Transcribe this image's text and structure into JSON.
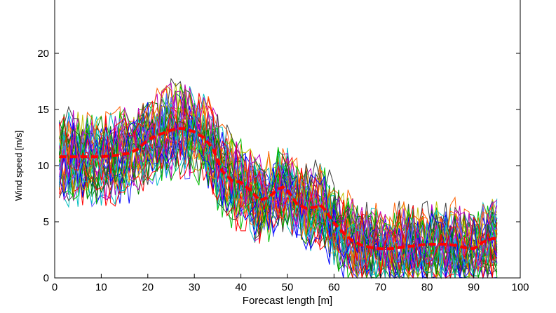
{
  "chart_data": {
    "type": "line",
    "title": "",
    "xlabel": "Forecast length [m]",
    "ylabel": "Wind speed [m/s]",
    "xlim": [
      0,
      100
    ],
    "ylim": [
      0,
      24
    ],
    "xticks": [
      0,
      10,
      20,
      30,
      40,
      50,
      60,
      70,
      80,
      90,
      100
    ],
    "yticks": [
      0,
      5,
      10,
      15,
      20
    ],
    "grid": false,
    "legend": "none",
    "ensemble": {
      "member_count": 45,
      "x_range": [
        1,
        95
      ],
      "description_colors": [
        "#0000ff",
        "#008000",
        "#ff0000",
        "#00bfbf",
        "#bf00bf",
        "#bfbf00",
        "#404040",
        "#00c000",
        "#ff6000",
        "#6060ff"
      ]
    },
    "series": [
      {
        "name": "",
        "style": "dashed",
        "color": "#ff0000",
        "x": [
          1,
          5,
          10,
          13,
          16,
          18,
          20,
          22,
          24,
          26,
          28,
          30,
          32,
          34,
          36,
          38,
          40,
          42,
          44,
          46,
          48,
          49,
          50,
          52,
          54,
          56,
          57,
          58,
          60,
          62,
          64,
          66,
          68,
          70,
          72,
          74,
          76,
          78,
          80,
          82,
          84,
          86,
          88,
          90,
          92,
          94,
          95
        ],
        "values": [
          10.8,
          10.8,
          10.8,
          10.9,
          11.1,
          11.5,
          12.3,
          12.7,
          13.0,
          13.3,
          13.3,
          13.0,
          12.5,
          11.5,
          9.5,
          8.7,
          8.5,
          7.8,
          6.9,
          7.2,
          7.9,
          8.1,
          7.8,
          6.6,
          6.2,
          6.3,
          6.5,
          6.1,
          4.9,
          4.0,
          3.3,
          2.9,
          2.7,
          2.6,
          2.6,
          2.7,
          2.8,
          2.9,
          3.0,
          3.0,
          3.0,
          2.9,
          2.7,
          2.6,
          3.2,
          3.5,
          3.5
        ]
      }
    ]
  }
}
